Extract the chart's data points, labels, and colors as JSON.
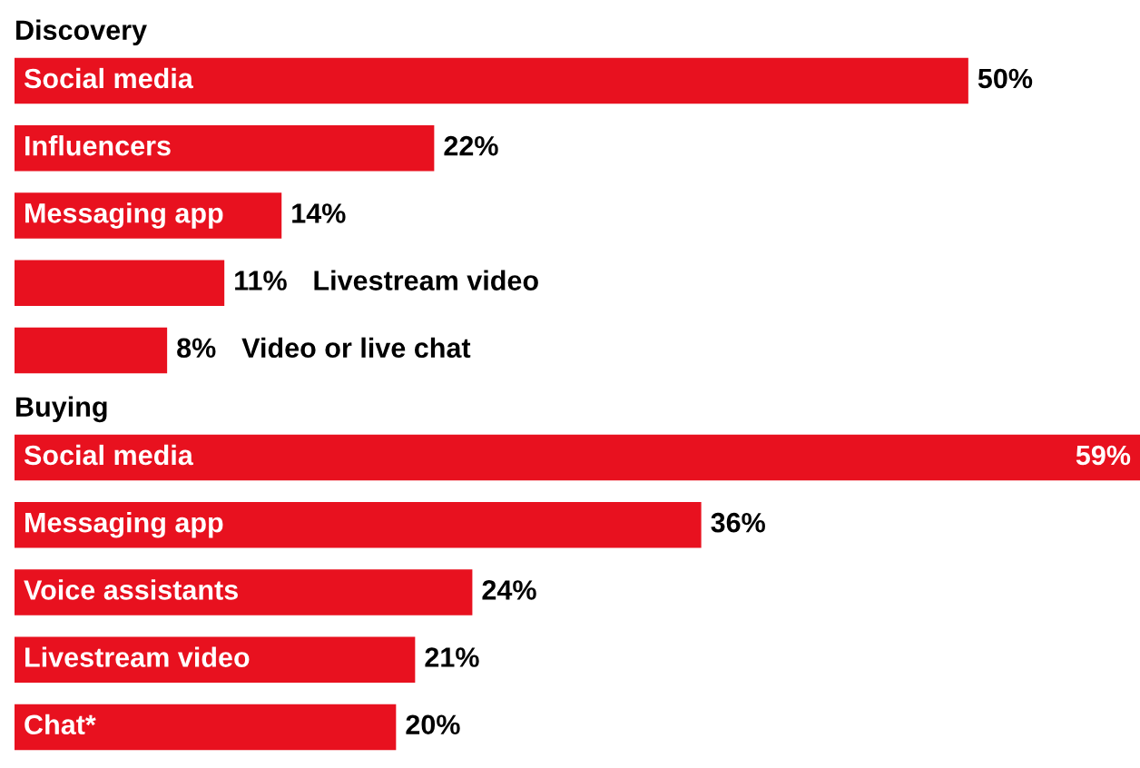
{
  "chart_data": [
    {
      "type": "bar",
      "orientation": "horizontal",
      "title": "Discovery",
      "categories": [
        "Social media",
        "Influencers",
        "Messaging app",
        "Livestream video",
        "Video or live chat"
      ],
      "values": [
        50,
        22,
        14,
        11,
        8
      ],
      "value_labels": [
        "50%",
        "22%",
        "14%",
        "11%",
        "8%"
      ],
      "color": "#e8111f"
    },
    {
      "type": "bar",
      "orientation": "horizontal",
      "title": "Buying",
      "categories": [
        "Social media",
        "Messaging app",
        "Voice assistants",
        "Livestream video",
        "Chat*"
      ],
      "values": [
        59,
        36,
        24,
        21,
        20
      ],
      "value_labels": [
        "59%",
        "36%",
        "24%",
        "21%",
        "20%"
      ],
      "color": "#e8111f"
    }
  ]
}
